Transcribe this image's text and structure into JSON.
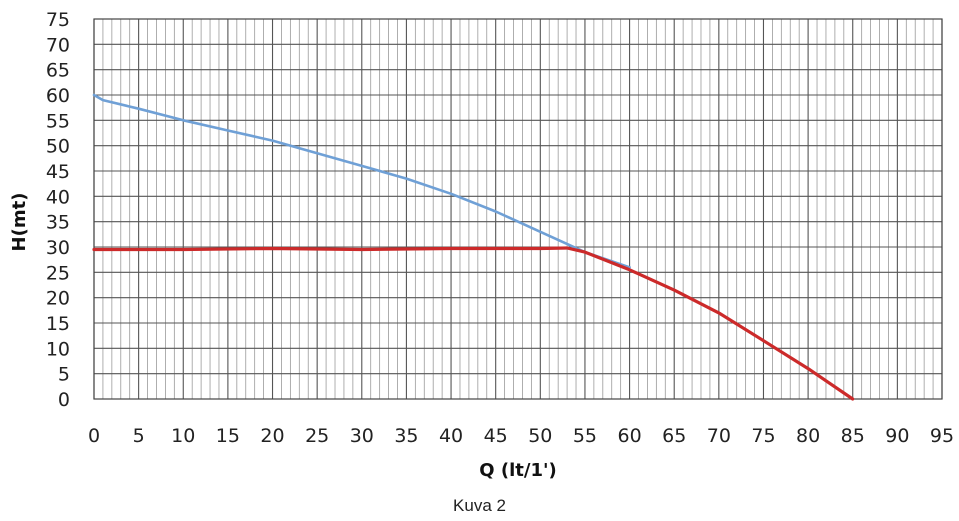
{
  "chart_data": {
    "type": "line",
    "title": "",
    "xlabel": "Q (lt/1')",
    "ylabel": "H(mt)",
    "xlim": [
      0,
      95
    ],
    "ylim": [
      0,
      75
    ],
    "xticks": [
      0,
      5,
      10,
      15,
      20,
      25,
      30,
      35,
      40,
      45,
      50,
      55,
      60,
      65,
      70,
      75,
      80,
      85,
      90,
      95
    ],
    "yticks": [
      0,
      5,
      10,
      15,
      20,
      25,
      30,
      35,
      40,
      45,
      50,
      55,
      60,
      65,
      70,
      75
    ],
    "grid": true,
    "minor_grid_x_step": 1,
    "legend": "none",
    "series": [
      {
        "color": "#6fa0d6",
        "x": [
          0,
          1,
          5,
          10,
          15,
          20,
          25,
          30,
          35,
          40,
          45,
          50,
          55,
          60
        ],
        "y": [
          60,
          59,
          57.3,
          55,
          53,
          51,
          48.5,
          46,
          43.5,
          40.5,
          37,
          33,
          29,
          26
        ]
      },
      {
        "color": "#cc2a2a",
        "x": [
          0,
          10,
          20,
          30,
          40,
          50,
          53,
          55,
          60,
          65,
          70,
          75,
          80,
          85
        ],
        "y": [
          29.5,
          29.5,
          29.7,
          29.5,
          29.7,
          29.7,
          29.8,
          29,
          25.5,
          21.5,
          17,
          11.5,
          6,
          0
        ]
      }
    ]
  },
  "caption": "Kuva 2"
}
